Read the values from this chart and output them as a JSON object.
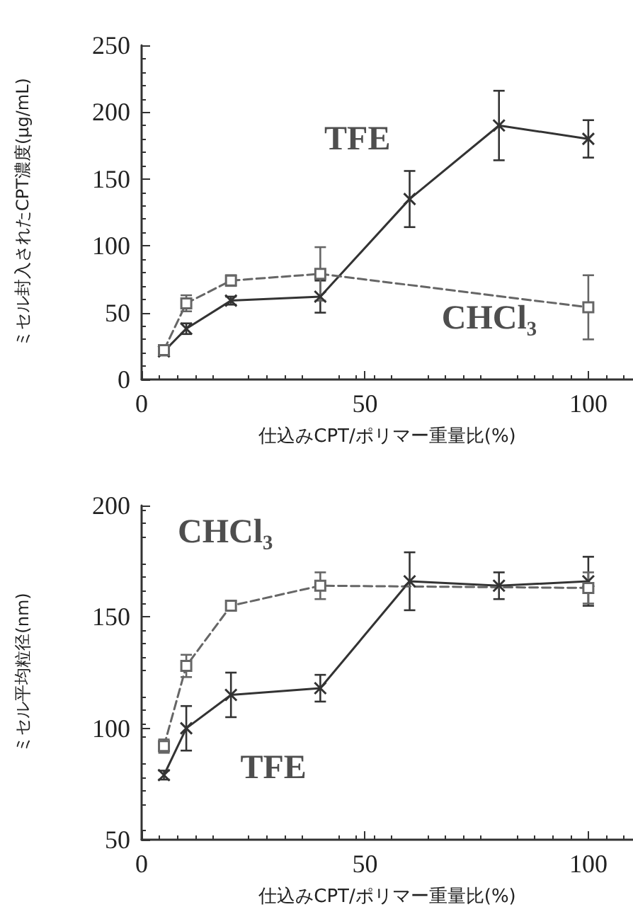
{
  "chart_data": [
    {
      "type": "line",
      "xlabel": "仕込みCPT/ポリマー重量比(%)",
      "ylabel": "ミセル封入されたCPT濃度(μg/mL)",
      "xlim": [
        0,
        110
      ],
      "xticks": [
        0,
        50,
        100
      ],
      "ylim": [
        0,
        250
      ],
      "yticks": [
        0,
        50,
        100,
        150,
        200,
        250
      ],
      "grid": false,
      "series": [
        {
          "name": "TFE",
          "x": [
            5,
            10,
            20,
            40,
            60,
            80,
            100
          ],
          "values": [
            21,
            38,
            59,
            62,
            135,
            190,
            180
          ],
          "errors": [
            3,
            4,
            3,
            12,
            21,
            26,
            14
          ],
          "color": "#333333",
          "marker": "cross",
          "line_style": "solid"
        },
        {
          "name": "CHCl₃",
          "x": [
            5,
            10,
            20,
            40,
            100
          ],
          "values": [
            22,
            57,
            74,
            79,
            54
          ],
          "errors": [
            3,
            6,
            4,
            20,
            24
          ],
          "color": "#666666",
          "marker": "square",
          "line_style": "dashed"
        }
      ]
    },
    {
      "type": "line",
      "xlabel": "仕込みCPT/ポリマー重量比(%)",
      "ylabel": "ミセル平均粒径(nm)",
      "xlim": [
        0,
        110
      ],
      "xticks": [
        0,
        50,
        100
      ],
      "ylim": [
        50,
        200
      ],
      "yticks": [
        50,
        100,
        150,
        200
      ],
      "grid": false,
      "series": [
        {
          "name": "TFE",
          "x": [
            5,
            10,
            20,
            40,
            60,
            80,
            100
          ],
          "values": [
            79,
            100,
            115,
            118,
            166,
            164,
            166
          ],
          "errors": [
            2,
            10,
            10,
            6,
            13,
            6,
            11
          ],
          "color": "#333333",
          "marker": "cross",
          "line_style": "solid"
        },
        {
          "name": "CHCl₃",
          "x": [
            5,
            10,
            20,
            40,
            100
          ],
          "values": [
            92,
            128,
            155,
            164,
            163
          ],
          "errors": [
            3,
            5,
            2,
            6,
            7
          ],
          "color": "#666666",
          "marker": "square",
          "line_style": "dashed"
        }
      ]
    }
  ]
}
